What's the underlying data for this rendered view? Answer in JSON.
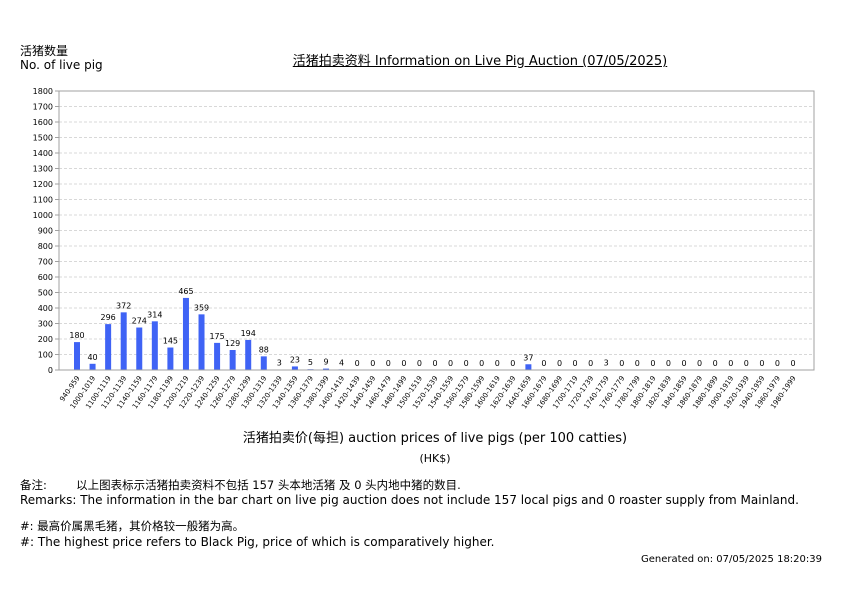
{
  "header": {
    "y_axis_title_cn": "活猪数量",
    "y_axis_title_en": "No. of live pig",
    "title": "活猪拍卖资料 Information on Live Pig Auction (07/05/2025)"
  },
  "axis": {
    "x_title": "活猪拍卖价(每担) auction prices of live pigs (per 100 catties)",
    "x_unit": "(HK$)"
  },
  "footer": {
    "remark_cn": "备注:        以上图表标示活猪拍卖资料不包括 157 头本地活猪 及 0 头内地中猪的数目.",
    "remark_en": "Remarks: The information in the bar chart on live pig auction does not include 157 local pigs and 0 roaster supply from Mainland.",
    "note_cn": "#: 最高价属黑毛猪，其价格较一般猪为高。",
    "note_en": "#: The highest price refers to Black Pig, price of which is comparatively higher.",
    "generated": "Generated on: 07/05/2025 18:20:39"
  },
  "colors": {
    "bar": "#3f63f5",
    "grid": "#d8d8d8",
    "frame": "#a0a0a0"
  },
  "chart_data": {
    "type": "bar",
    "title": "活猪拍卖资料 Information on Live Pig Auction (07/05/2025)",
    "xlabel": "活猪拍卖价(每担) auction prices of live pigs (per 100 catties) (HK$)",
    "ylabel": "活猪数量 No. of live pig",
    "ylim": [
      0,
      1800
    ],
    "yticks": [
      0,
      100,
      200,
      300,
      400,
      500,
      600,
      700,
      800,
      900,
      1000,
      1100,
      1200,
      1300,
      1400,
      1500,
      1600,
      1700,
      1800
    ],
    "grid": true,
    "legend": null,
    "categories": [
      "940-959",
      "1000-1019",
      "1100-1119",
      "1120-1139",
      "1140-1159",
      "1160-1179",
      "1180-1199",
      "1200-1219",
      "1220-1239",
      "1240-1259",
      "1260-1279",
      "1280-1299",
      "1300-1319",
      "1320-1339",
      "1340-1359",
      "1360-1379",
      "1380-1399",
      "1400-1419",
      "1420-1439",
      "1440-1459",
      "1460-1479",
      "1480-1499",
      "1500-1519",
      "1520-1539",
      "1540-1559",
      "1560-1579",
      "1580-1599",
      "1600-1619",
      "1620-1639",
      "1640-1659",
      "1660-1679",
      "1680-1699",
      "1700-1719",
      "1720-1739",
      "1740-1759",
      "1760-1779",
      "1780-1799",
      "1800-1819",
      "1820-1839",
      "1840-1859",
      "1860-1879",
      "1880-1899",
      "1900-1919",
      "1920-1939",
      "1940-1959",
      "1960-1979",
      "1980-1999"
    ],
    "values": [
      180,
      40,
      296,
      372,
      274,
      314,
      145,
      465,
      359,
      175,
      129,
      194,
      88,
      3,
      23,
      5,
      9,
      4,
      0,
      0,
      0,
      0,
      0,
      0,
      0,
      0,
      0,
      0,
      0,
      37,
      0,
      0,
      0,
      0,
      3,
      0,
      0,
      0,
      0,
      0,
      0,
      0,
      0,
      0,
      0,
      0,
      0
    ]
  }
}
